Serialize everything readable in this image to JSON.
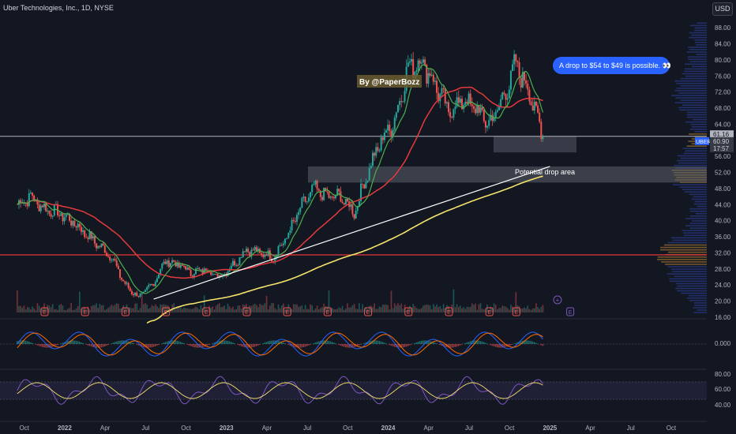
{
  "header": {
    "title": "Uber Technologies, Inc., 1D, NYSE",
    "currency": "USD"
  },
  "colors": {
    "background": "#131722",
    "candle_up": "#26a69a",
    "candle_down": "#ef5350",
    "ma_long": "#e5393c",
    "ma_short": "#4caf50",
    "avg_line": "#f5e36b",
    "trendline": "#ffffff",
    "horizontal_support": "#e5393c",
    "callout_bg": "#2962ff",
    "profile_blue": "#2a3d8f",
    "profile_orange": "#a7782e"
  },
  "annotations": {
    "author": "By @PaperBozz",
    "callout": "A drop to $54 to $49 is possible. 👀",
    "zone_label": "Potential drop area"
  },
  "price_labels": {
    "last": "61.16",
    "symbol": "UBER",
    "current": "60.90",
    "countdown": "17:57"
  },
  "oscillator_labels": {
    "macd_zero": "0.000",
    "rsi_levels": [
      "80.00",
      "60.00",
      "40.00"
    ]
  },
  "events": {
    "earnings": "E",
    "dividend": "+"
  },
  "chart_data": {
    "type": "line",
    "title": "Uber Technologies, Inc., 1D, NYSE",
    "y_ticks": [
      "88.00",
      "84.00",
      "80.00",
      "76.00",
      "72.00",
      "68.00",
      "64.00",
      "60.00",
      "56.00",
      "52.00",
      "48.00",
      "44.00",
      "40.00",
      "36.00",
      "32.00",
      "28.00",
      "24.00",
      "20.00",
      "16.00"
    ],
    "x_ticks": [
      "Oct",
      "2022",
      "Apr",
      "Jul",
      "Oct",
      "2023",
      "Apr",
      "Jul",
      "Oct",
      "2024",
      "Apr",
      "Jul",
      "Oct",
      "2025",
      "Apr",
      "Jul",
      "Oct"
    ],
    "ylim": [
      16,
      90
    ],
    "y_scale": "linear",
    "grid": false,
    "horizontal_lines": [
      61.0,
      31.5
    ],
    "drop_zone": [
      49.5,
      53.5
    ],
    "earnings_markers": [
      "2021-11",
      "2022-02",
      "2022-05",
      "2022-08",
      "2022-11",
      "2023-02",
      "2023-05",
      "2023-08",
      "2023-11",
      "2024-02",
      "2024-05",
      "2024-08",
      "2024-10",
      "2025-02"
    ],
    "series": [
      {
        "name": "",
        "x": [
          "2021-09",
          "2021-10",
          "2021-11",
          "2021-12",
          "2022-01",
          "2022-02",
          "2022-03",
          "2022-04",
          "2022-05",
          "2022-06",
          "2022-07",
          "2022-08",
          "2022-09",
          "2022-10",
          "2022-11",
          "2022-12",
          "2023-01",
          "2023-02",
          "2023-03",
          "2023-04",
          "2023-05",
          "2023-06",
          "2023-07",
          "2023-08",
          "2023-09",
          "2023-10",
          "2023-11",
          "2023-12",
          "2024-01",
          "2024-02",
          "2024-03",
          "2024-04",
          "2024-05",
          "2024-06",
          "2024-07",
          "2024-08",
          "2024-09",
          "2024-10",
          "2024-11",
          "2024-12"
        ],
        "values": [
          44,
          46,
          43,
          42,
          40,
          37,
          34,
          31,
          24,
          21,
          24,
          30,
          29,
          27,
          28,
          26,
          29,
          33,
          32,
          31,
          36,
          43,
          48,
          46,
          46,
          42,
          52,
          60,
          65,
          78,
          80,
          74,
          67,
          70,
          68,
          64,
          70,
          79,
          72,
          61
        ]
      }
    ]
  }
}
